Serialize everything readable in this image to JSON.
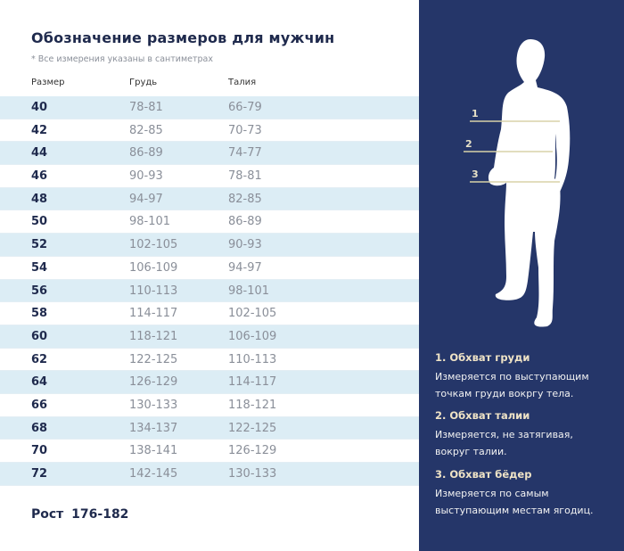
{
  "title": "Обозначение размеров для мужчин",
  "note": "* Все измерения указаны в сантиметрах",
  "columns": [
    "Размер",
    "Грудь",
    "Талия"
  ],
  "rows": [
    [
      "40",
      "78-81",
      "66-79"
    ],
    [
      "42",
      "82-85",
      "70-73"
    ],
    [
      "44",
      "86-89",
      "74-77"
    ],
    [
      "46",
      "90-93",
      "78-81"
    ],
    [
      "48",
      "94-97",
      "82-85"
    ],
    [
      "50",
      "98-101",
      "86-89"
    ],
    [
      "52",
      "102-105",
      "90-93"
    ],
    [
      "54",
      "106-109",
      "94-97"
    ],
    [
      "56",
      "110-113",
      "98-101"
    ],
    [
      "58",
      "114-117",
      "102-105"
    ],
    [
      "60",
      "118-121",
      "106-109"
    ],
    [
      "62",
      "122-125",
      "110-113"
    ],
    [
      "64",
      "126-129",
      "114-117"
    ],
    [
      "66",
      "130-133",
      "118-121"
    ],
    [
      "68",
      "134-137",
      "122-125"
    ],
    [
      "70",
      "138-141",
      "126-129"
    ],
    [
      "72",
      "142-145",
      "130-133"
    ]
  ],
  "height_label": "Рост 176-182",
  "markers": [
    "1",
    "2",
    "3"
  ],
  "info": [
    {
      "title": "1. Обхват груди",
      "lines": [
        "Измеряется по  выступающим",
        "точкам груди вокргу тела."
      ]
    },
    {
      "title": "2. Обхват талии",
      "lines": [
        "Измеряется, не затягивая,",
        "вокруг талии."
      ]
    },
    {
      "title": "3. Обхват бёдер",
      "lines": [
        "Измеряется по самым",
        "выступающим местам ягодиц."
      ]
    }
  ],
  "colors": {
    "panel": "#253669",
    "stripe": "#dcedf5",
    "heading": "#1f2a4d",
    "accent": "#efe3c6"
  }
}
